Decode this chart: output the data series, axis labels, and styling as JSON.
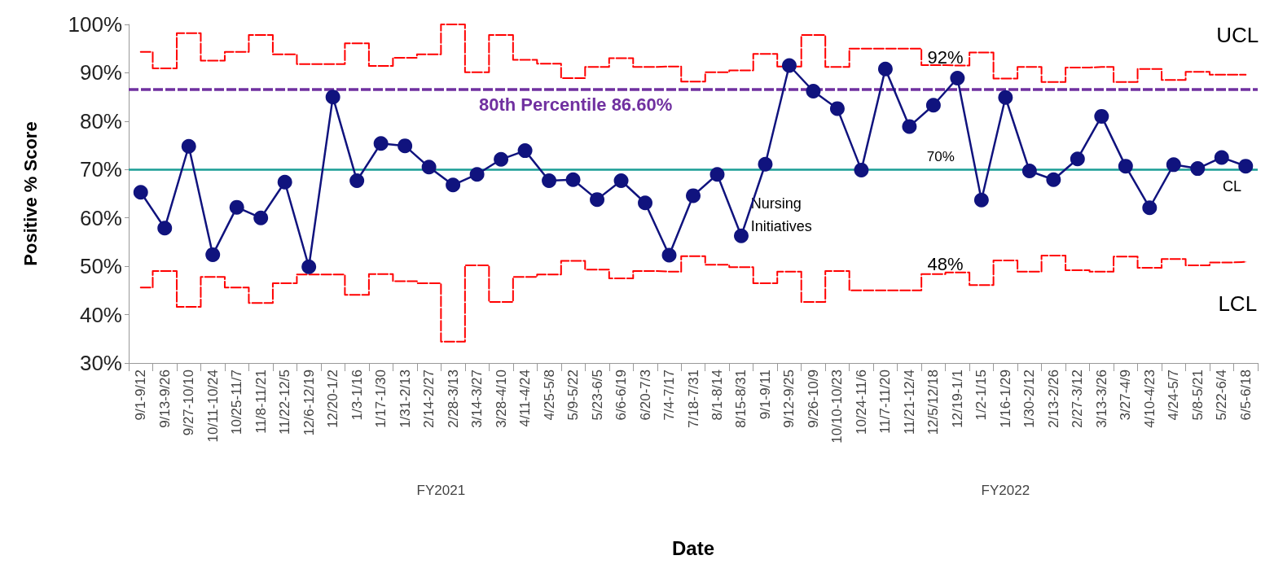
{
  "chart_data": {
    "type": "line",
    "xlabel": "Date",
    "ylabel": "Positive % Score",
    "categories": [
      "9/1-9/12",
      "9/13-9/26",
      "9/27-10/10",
      "10/11-10/24",
      "10/25-11/7",
      "11/8-11/21",
      "11/22-12/5",
      "12/6-12/19",
      "12/20-1/2",
      "1/3-1/16",
      "1/17-1/30",
      "1/31-2/13",
      "2/14-2/27",
      "2/28-3/13",
      "3/14-3/27",
      "3/28-4/10",
      "4/11-4/24",
      "4/25-5/8",
      "5/9-5/22",
      "5/23-6/5",
      "6/6-6/19",
      "6/20-7/3",
      "7/4-7/17",
      "7/18-7/31",
      "8/1-8/14",
      "8/15-8/31",
      "9/1-9/11",
      "9/12-9/25",
      "9/26-10/9",
      "10/10-10/23",
      "10/24-11/6",
      "11/7-11/20",
      "11/21-12/4",
      "12/5/12/18",
      "12/19-1/1",
      "1/2-1/15",
      "1/16-1/29",
      "1/30-2/12",
      "2/13-2/26",
      "2/27-3/12",
      "3/13-3/26",
      "3/27-4/9",
      "4/10-4/23",
      "4/24-5/7",
      "5/8-5/21",
      "5/22-6/4",
      "6/5-6/18"
    ],
    "series": [
      {
        "type": "step",
        "name": "UCL",
        "color": "#ff0000",
        "line_style": "dashed",
        "marker": "none",
        "values": [
          94.3,
          90.9,
          98.2,
          92.5,
          94.3,
          97.8,
          93.8,
          91.8,
          91.8,
          96.1,
          91.4,
          93.1,
          93.8,
          100,
          90.1,
          97.8,
          92.7,
          91.9,
          88.9,
          91.2,
          93.0,
          91.2,
          91.3,
          88.2,
          90.1,
          90.5,
          93.9,
          91.3,
          97.8,
          91.2,
          95.0,
          95.0,
          95.0,
          91.6,
          91.5,
          94.2,
          88.8,
          91.2,
          88.1,
          91.1,
          91.2,
          88.1,
          90.8,
          88.5,
          90.2,
          89.6,
          89.6
        ]
      },
      {
        "type": "step",
        "name": "LCL",
        "color": "#ff0000",
        "line_style": "dashed",
        "marker": "none",
        "values": [
          45.6,
          49.0,
          41.6,
          47.8,
          45.6,
          42.4,
          46.5,
          48.3,
          48.3,
          44.1,
          48.4,
          46.9,
          46.5,
          34.4,
          50.2,
          42.6,
          47.8,
          48.3,
          51.1,
          49.3,
          47.5,
          49.0,
          48.9,
          52.1,
          50.3,
          49.8,
          46.5,
          48.9,
          42.6,
          49.0,
          45.0,
          45.0,
          45.0,
          48.4,
          48.7,
          46.1,
          51.2,
          48.9,
          52.2,
          49.2,
          48.9,
          52.0,
          49.7,
          51.5,
          50.2,
          50.8,
          50.9
        ]
      },
      {
        "color": "#10137e",
        "line_style": "solid",
        "marker": "circle",
        "values": [
          65.3,
          57.9,
          74.8,
          52.4,
          62.2,
          60.0,
          67.4,
          49.9,
          85.0,
          67.7,
          75.4,
          74.9,
          70.5,
          66.8,
          69.0,
          72.1,
          73.9,
          67.7,
          67.9,
          63.8,
          67.7,
          63.1,
          52.3,
          64.6,
          69.0,
          56.3,
          71.1,
          91.5,
          86.2,
          82.6,
          69.9,
          90.8,
          78.9,
          83.3,
          88.9,
          63.7,
          84.9,
          69.7,
          67.9,
          72.2,
          81.0,
          70.7,
          62.1,
          71.0,
          70.2,
          72.5,
          70.7
        ]
      }
    ],
    "ylim": [
      30,
      100
    ],
    "yticks": [
      {
        "value": 30,
        "label": "30%"
      },
      {
        "value": 40,
        "label": "40%"
      },
      {
        "value": 50,
        "label": "50%"
      },
      {
        "value": 60,
        "label": "60%"
      },
      {
        "value": 70,
        "label": "70%"
      },
      {
        "value": 80,
        "label": "80%"
      },
      {
        "value": 90,
        "label": "90%"
      },
      {
        "value": 100,
        "label": "100%"
      }
    ],
    "ref_lines": [
      {
        "axis": "y",
        "value": 70,
        "label": "CL",
        "color": "#1a9e96",
        "line_style": "solid"
      },
      {
        "axis": "y",
        "value": 86.6,
        "label": "80th Percentile 86.60%",
        "color": "#7030a0",
        "line_style": "dashed"
      }
    ],
    "annotations": [
      "92%",
      "48%",
      "70%",
      "Nursing Initiatives",
      "FY2021",
      "FY2022"
    ],
    "grid": false,
    "legend": false
  }
}
